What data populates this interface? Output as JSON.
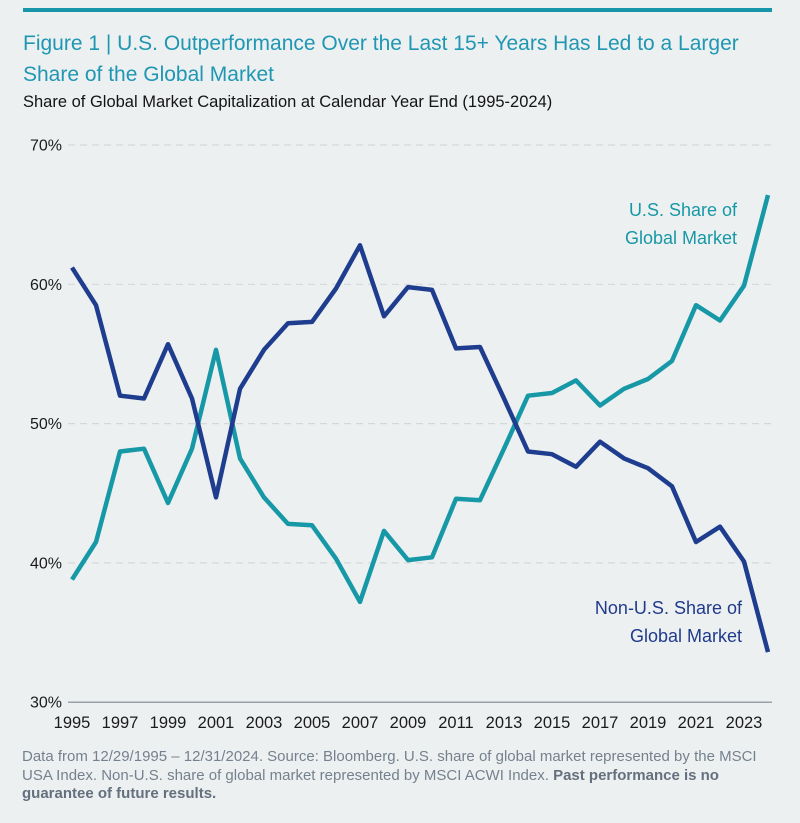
{
  "page": {
    "background": "#edf0f1"
  },
  "header": {
    "rule_color": "#1795a9",
    "title_color": "#1f97b3",
    "title_line1": "Figure 1 | U.S. Outperformance Over the Last 15+ Years Has Led to a Larger",
    "title_line2": "Share of the Global Market",
    "subtitle": "Share of Global Market Capitalization at Calendar Year End (1995-2024)"
  },
  "chart_data": {
    "type": "line",
    "title": "Share of Global Market Capitalization at Calendar Year End (1995-2024)",
    "x": [
      1995,
      1996,
      1997,
      1998,
      1999,
      2000,
      2001,
      2002,
      2003,
      2004,
      2005,
      2006,
      2007,
      2008,
      2009,
      2010,
      2011,
      2012,
      2013,
      2014,
      2015,
      2016,
      2017,
      2018,
      2019,
      2020,
      2021,
      2022,
      2023,
      2024
    ],
    "series": [
      {
        "name": "U.S. Share of Global Market",
        "color": "#1798a6",
        "values": [
          38.8,
          41.5,
          48.0,
          48.2,
          44.3,
          48.2,
          55.3,
          47.5,
          44.7,
          42.8,
          42.7,
          40.3,
          37.2,
          42.3,
          40.2,
          40.4,
          44.6,
          44.5,
          48.2,
          52.0,
          52.2,
          53.1,
          51.3,
          52.5,
          53.2,
          54.5,
          58.5,
          57.4,
          59.9,
          66.4
        ]
      },
      {
        "name": "Non-U.S. Share of Global Market",
        "color": "#1f3d8e",
        "values": [
          61.2,
          58.5,
          52.0,
          51.8,
          55.7,
          51.8,
          44.7,
          52.5,
          55.3,
          57.2,
          57.3,
          59.7,
          62.8,
          57.7,
          59.8,
          59.6,
          55.4,
          55.5,
          51.8,
          48.0,
          47.8,
          46.9,
          48.7,
          47.5,
          46.8,
          45.5,
          41.5,
          42.6,
          40.1,
          33.6
        ]
      }
    ],
    "ylim": [
      30,
      70
    ],
    "yticks": [
      70,
      60,
      50,
      40,
      30
    ],
    "ytick_suffix": "%",
    "xticks": [
      1995,
      1997,
      1999,
      2001,
      2003,
      2005,
      2007,
      2009,
      2011,
      2013,
      2015,
      2017,
      2019,
      2021,
      2023
    ],
    "grid": "horizontal dashed, bottom axis solid",
    "legend_position": "inline annotations",
    "annotations": [
      {
        "lines": [
          "U.S. Share of",
          "Global Market"
        ],
        "color": "#1798a6",
        "position": "upper-right"
      },
      {
        "lines": [
          "Non-U.S. Share of",
          "Global Market"
        ],
        "color": "#203a8c",
        "position": "lower-right"
      }
    ]
  },
  "footer": {
    "text": "Data from 12/29/1995 – 12/31/2024. Source: Bloomberg. U.S. share of global market represented by the MSCI USA Index. Non-U.S. share of global market represented by MSCI ACWI Index. ",
    "bold_text": "Past performance is no guarantee of future results."
  }
}
